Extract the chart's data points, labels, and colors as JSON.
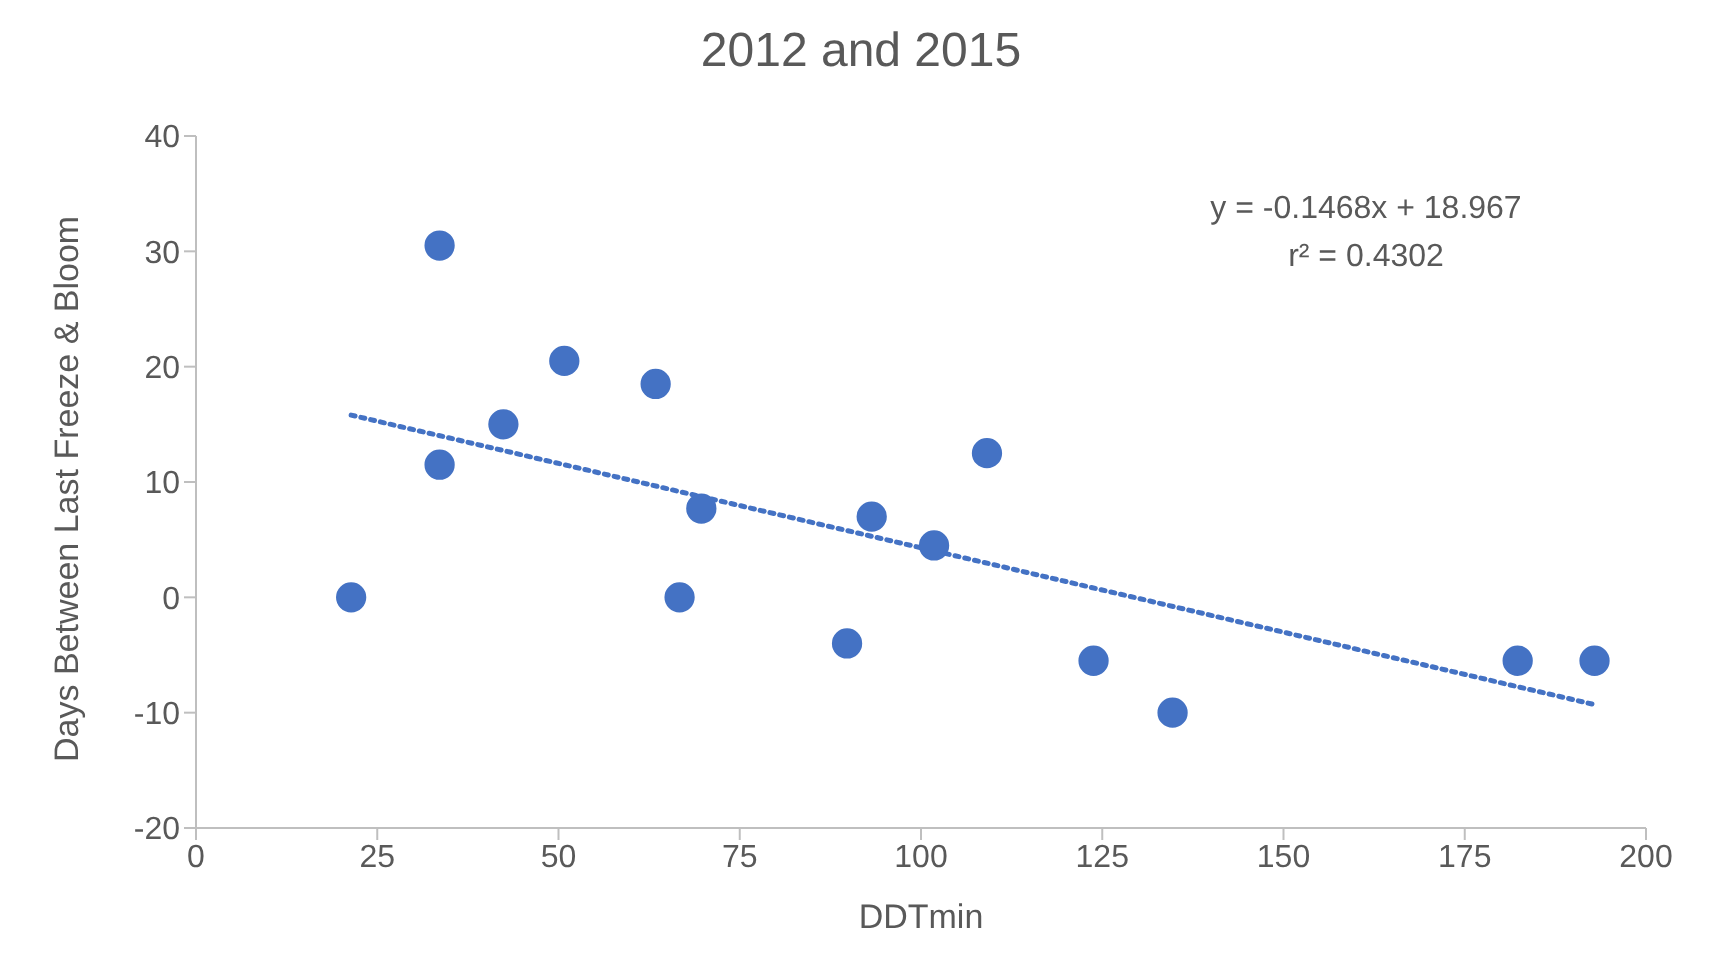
{
  "chart_data": {
    "type": "scatter",
    "title": "2012 and 2015",
    "xlabel": "DDTmin",
    "ylabel": "Days Between Last Freeze & Bloom",
    "x": [
      21.4,
      33.6,
      33.6,
      42.4,
      50.8,
      63.4,
      69.7,
      66.7,
      89.8,
      93.2,
      101.8,
      109.1,
      123.8,
      134.7,
      182.3,
      192.9
    ],
    "series": [
      {
        "color": "#4472c4",
        "marker": "circle",
        "values": [
          0,
          30.5,
          11.5,
          15,
          20.5,
          18.5,
          7.7,
          0,
          -4,
          7,
          4.5,
          12.5,
          -5.5,
          -10,
          -5.5,
          -5.5
        ]
      },
      {
        "type": "line",
        "color": "#4472c4",
        "line_style": "dotted",
        "marker": "none",
        "x": [
          21.4,
          192.9
        ],
        "values": [
          15.8,
          -9.3
        ]
      }
    ],
    "xlim": [
      0,
      200
    ],
    "xticks": [
      0,
      25,
      50,
      75,
      100,
      125,
      150,
      175,
      200
    ],
    "ylim": [
      -20,
      40
    ],
    "yticks": [
      -20,
      -10,
      0,
      10,
      20,
      30,
      40
    ],
    "grid": false,
    "legend": false,
    "annotations": [
      "y = -0.1468x + 18.967",
      "r² = 0.4302"
    ]
  }
}
